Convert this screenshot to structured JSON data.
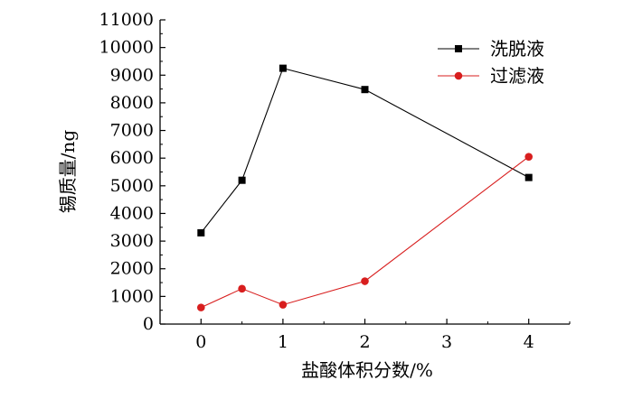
{
  "chart_data": {
    "type": "line",
    "xlabel": "盐酸体积分数/%",
    "ylabel": "锡质量/ng",
    "xlim": [
      -0.5,
      4.5
    ],
    "ylim": [
      0,
      11000
    ],
    "x_ticks": [
      {
        "value": 0,
        "label": "0"
      },
      {
        "value": 1,
        "label": "1"
      },
      {
        "value": 2,
        "label": "2"
      },
      {
        "value": 3,
        "label": "3"
      },
      {
        "value": 4,
        "label": "4"
      }
    ],
    "y_ticks": [
      0,
      1000,
      2000,
      3000,
      4000,
      5000,
      6000,
      7000,
      8000,
      9000,
      10000,
      11000
    ],
    "grid": false,
    "legend": "top-right",
    "series": [
      {
        "name": "洗脱液",
        "color": "#000000",
        "marker": "square",
        "x": [
          0,
          0.5,
          1,
          2,
          4
        ],
        "y": [
          3300,
          5200,
          9250,
          8480,
          5300
        ]
      },
      {
        "name": "过滤液",
        "color": "#d81e1e",
        "marker": "circle",
        "x": [
          0,
          0.5,
          1,
          2,
          4
        ],
        "y": [
          600,
          1280,
          700,
          1550,
          6050
        ]
      }
    ]
  }
}
